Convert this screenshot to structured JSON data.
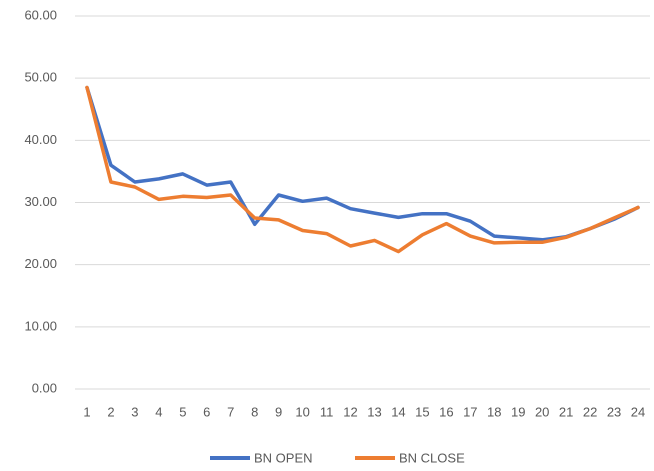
{
  "chart_data": {
    "type": "line",
    "categories": [
      "1",
      "2",
      "3",
      "4",
      "5",
      "6",
      "7",
      "8",
      "9",
      "10",
      "11",
      "12",
      "13",
      "14",
      "15",
      "16",
      "17",
      "18",
      "19",
      "20",
      "21",
      "22",
      "23",
      "24"
    ],
    "series": [
      {
        "name": "BN OPEN",
        "color": "#4472c4",
        "values": [
          48.5,
          36,
          33.3,
          33.8,
          34.6,
          32.8,
          33.3,
          26.5,
          31.2,
          30.2,
          30.7,
          29.0,
          28.3,
          27.6,
          28.2,
          28.2,
          27.0,
          24.6,
          24.3,
          24.0,
          24.5,
          25.8,
          27.3,
          29.2
        ]
      },
      {
        "name": "BN CLOSE",
        "color": "#ed7d31",
        "values": [
          48.5,
          33.3,
          32.5,
          30.5,
          31.0,
          30.8,
          31.2,
          27.5,
          27.2,
          25.5,
          25.0,
          23.0,
          23.9,
          22.1,
          24.8,
          26.6,
          24.6,
          23.5,
          23.6,
          23.6,
          24.4,
          25.8,
          27.5,
          29.2
        ]
      }
    ],
    "ylim": [
      0,
      60
    ],
    "yticks": [
      {
        "value": 0,
        "label": "0.00"
      },
      {
        "value": 10,
        "label": "10.00"
      },
      {
        "value": 20,
        "label": "20.00"
      },
      {
        "value": 30,
        "label": "30.00"
      },
      {
        "value": 40,
        "label": "40.00"
      },
      {
        "value": 50,
        "label": "50.00"
      },
      {
        "value": 60,
        "label": "60.00"
      }
    ],
    "grid": true,
    "legend": "bottom"
  }
}
